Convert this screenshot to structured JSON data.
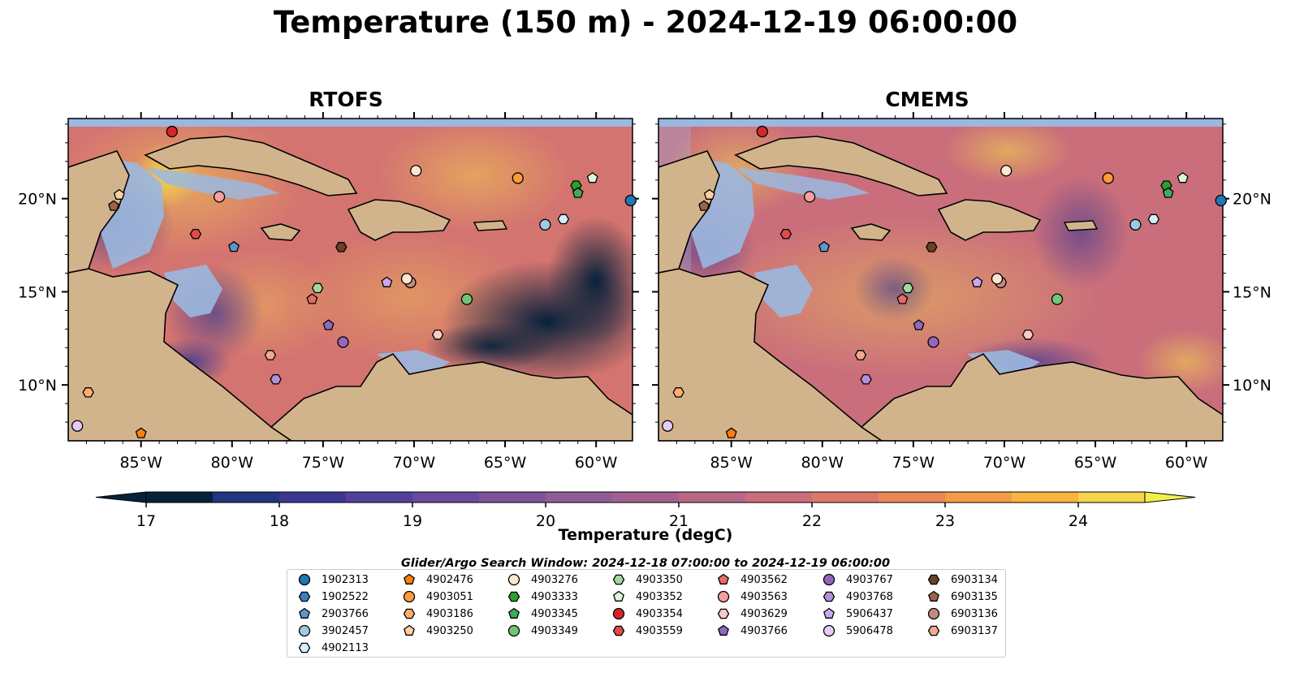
{
  "title": "Temperature (150 m) - 2024-12-19 06:00:00",
  "panels": [
    {
      "title": "RTOFS"
    },
    {
      "title": "CMEMS"
    }
  ],
  "map_extent": {
    "lon": [
      -89,
      -58
    ],
    "lat": [
      7,
      24.3
    ]
  },
  "lon_ticks": [
    {
      "value": -85,
      "label": "85°W"
    },
    {
      "value": -80,
      "label": "80°W"
    },
    {
      "value": -75,
      "label": "75°W"
    },
    {
      "value": -70,
      "label": "70°W"
    },
    {
      "value": -65,
      "label": "65°W"
    },
    {
      "value": -60,
      "label": "60°W"
    }
  ],
  "lat_ticks": [
    {
      "value": 10,
      "label": "10°N"
    },
    {
      "value": 15,
      "label": "15°N"
    },
    {
      "value": 20,
      "label": "20°N"
    }
  ],
  "colorbar": {
    "title": "Temperature (degC)",
    "min": 16.75,
    "max": 24.5,
    "levels": [
      17,
      17.5,
      18,
      18.5,
      19,
      19.5,
      20,
      20.5,
      21,
      21.5,
      22,
      22.5,
      23,
      23.5,
      24,
      24.5
    ],
    "colors": [
      "#06213a",
      "#0f2f5c",
      "#22357e",
      "#3b3792",
      "#53409b",
      "#684b9d",
      "#7b559a",
      "#8e5d96",
      "#a36190",
      "#b86787",
      "#ca6e7b",
      "#db786a",
      "#eb8755",
      "#f69a45",
      "#fab440",
      "#f5d54c"
    ],
    "tick_labels": [
      "17",
      "18",
      "19",
      "20",
      "21",
      "22",
      "23",
      "24"
    ]
  },
  "search_window": "Glider/Argo Search Window: 2024-12-18 07:00:00 to 2024-12-19 06:00:00",
  "floats": [
    {
      "id": "1902313",
      "marker": "circle",
      "color": "#1f77b4",
      "lon": -58.1,
      "lat": 19.9
    },
    {
      "id": "1902522",
      "marker": "hexagon",
      "color": "#3a7fc0",
      "lon": null,
      "lat": null
    },
    {
      "id": "2903766",
      "marker": "pentagon",
      "color": "#5a96cf",
      "lon": -79.9,
      "lat": 17.4
    },
    {
      "id": "3902457",
      "marker": "circle",
      "color": "#9ecae1",
      "lon": -62.8,
      "lat": 18.6
    },
    {
      "id": "4902113",
      "marker": "hexagon",
      "color": "#d6ecfa",
      "lon": -61.8,
      "lat": 18.9
    },
    {
      "id": "4902476",
      "marker": "pentagon",
      "color": "#ff7f0e",
      "lon": -85.0,
      "lat": 7.4
    },
    {
      "id": "4903051",
      "marker": "circle",
      "color": "#fd9a3a",
      "lon": -64.3,
      "lat": 21.1
    },
    {
      "id": "4903186",
      "marker": "hexagon",
      "color": "#fdae6b",
      "lon": -87.9,
      "lat": 9.6
    },
    {
      "id": "4903250",
      "marker": "pentagon",
      "color": "#fdd0a2",
      "lon": -86.2,
      "lat": 20.2
    },
    {
      "id": "4903276",
      "marker": "circle",
      "color": "#fee6ce",
      "lon": -69.9,
      "lat": 21.5
    },
    {
      "id": "4903333",
      "marker": "hexagon",
      "color": "#2ca02c",
      "lon": -61.1,
      "lat": 20.7
    },
    {
      "id": "4903345",
      "marker": "pentagon",
      "color": "#41ab5d",
      "lon": -61.0,
      "lat": 20.3
    },
    {
      "id": "4903349",
      "marker": "circle",
      "color": "#74c476",
      "lon": -67.1,
      "lat": 14.6
    },
    {
      "id": "4903350",
      "marker": "hexagon",
      "color": "#a1d99b",
      "lon": -75.3,
      "lat": 15.2
    },
    {
      "id": "4903352",
      "marker": "pentagon",
      "color": "#dff5d8",
      "lon": -60.2,
      "lat": 21.1
    },
    {
      "id": "4903354",
      "marker": "circle",
      "color": "#d62728",
      "lon": -83.3,
      "lat": 23.6
    },
    {
      "id": "4903559",
      "marker": "hexagon",
      "color": "#e04a4a",
      "lon": -82.0,
      "lat": 18.1
    },
    {
      "id": "4903562",
      "marker": "pentagon",
      "color": "#e86a6a",
      "lon": -75.6,
      "lat": 14.6
    },
    {
      "id": "4903563",
      "marker": "circle",
      "color": "#f4a0a0",
      "lon": -80.7,
      "lat": 20.1
    },
    {
      "id": "4903629",
      "marker": "hexagon",
      "color": "#fcc8c8",
      "lon": -68.7,
      "lat": 12.7
    },
    {
      "id": "4903766",
      "marker": "pentagon",
      "color": "#8b6bbf",
      "lon": -74.7,
      "lat": 13.2
    },
    {
      "id": "4903767",
      "marker": "circle",
      "color": "#9467bd",
      "lon": -73.9,
      "lat": 12.3
    },
    {
      "id": "4903768",
      "marker": "hexagon",
      "color": "#b48fdc",
      "lon": -77.6,
      "lat": 10.3
    },
    {
      "id": "5906437",
      "marker": "pentagon",
      "color": "#c9a8f0",
      "lon": -71.5,
      "lat": 15.5
    },
    {
      "id": "5906478",
      "marker": "circle",
      "color": "#e5cbfa",
      "lon": -88.5,
      "lat": 7.8
    },
    {
      "id": "6903134",
      "marker": "hexagon",
      "color": "#6b4226",
      "lon": -74.0,
      "lat": 17.4
    },
    {
      "id": "6903135",
      "marker": "pentagon",
      "color": "#a0614a",
      "lon": -86.5,
      "lat": 19.6
    },
    {
      "id": "6903136",
      "marker": "circle",
      "color": "#c08a7c",
      "lon": -70.2,
      "lat": 15.5
    },
    {
      "id": "6903137",
      "marker": "hexagon",
      "color": "#f0a890",
      "lon": -77.9,
      "lat": 11.6
    }
  ],
  "float_label_extra": [
    {
      "id": "4903276b",
      "lon": -70.4,
      "lat": 15.7
    }
  ]
}
